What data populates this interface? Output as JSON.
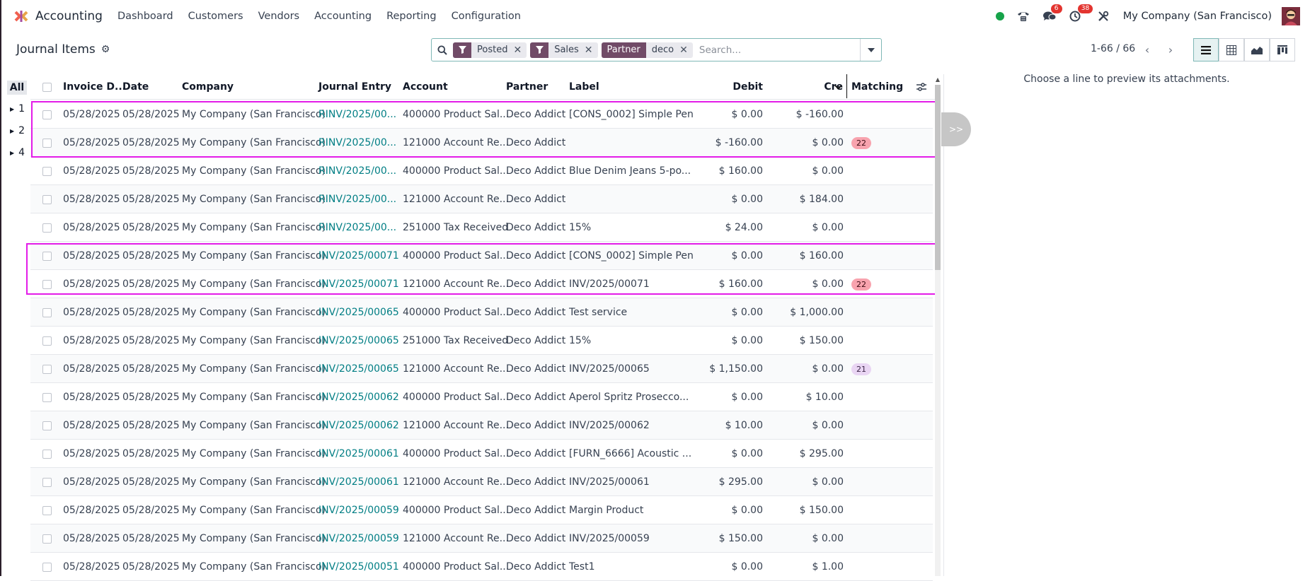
{
  "app": {
    "name": "Accounting",
    "menu": [
      "Dashboard",
      "Customers",
      "Vendors",
      "Accounting",
      "Reporting",
      "Configuration"
    ],
    "company": "My Company (San Francisco)",
    "messages_badge": "6",
    "activities_badge": "38"
  },
  "control_panel": {
    "title": "Journal Items",
    "facets": [
      {
        "label": "Posted"
      },
      {
        "label": "Sales"
      },
      {
        "label": "deco",
        "tag": "Partner"
      }
    ],
    "search_placeholder": "Search...",
    "pager": "1-66 / 66"
  },
  "group_panel": {
    "all_label": "All",
    "items": [
      "1",
      "2",
      "4"
    ]
  },
  "table": {
    "columns": [
      "Invoice D...",
      "Date",
      "Company",
      "Journal Entry",
      "Account",
      "Partner",
      "Label",
      "Debit",
      "Cre",
      "Matching"
    ],
    "rows": [
      {
        "invoice_date": "05/28/2025",
        "date": "05/28/2025",
        "company": "My Company (San Francisco)",
        "entry": "RINV/2025/00...",
        "account": "400000 Product Sal...",
        "partner": "Deco Addict",
        "label": "[CONS_0002] Simple Pen",
        "debit": "$ 0.00",
        "credit": "$ -160.00",
        "matching": ""
      },
      {
        "invoice_date": "05/28/2025",
        "date": "05/28/2025",
        "company": "My Company (San Francisco)",
        "entry": "RINV/2025/00...",
        "account": "121000 Account Re...",
        "partner": "Deco Addict",
        "label": "",
        "debit": "$ -160.00",
        "credit": "$ 0.00",
        "matching": "22"
      },
      {
        "invoice_date": "05/28/2025",
        "date": "05/28/2025",
        "company": "My Company (San Francisco)",
        "entry": "RINV/2025/00...",
        "account": "400000 Product Sal...",
        "partner": "Deco Addict",
        "label": "Blue Denim Jeans 5-po...",
        "debit": "$ 160.00",
        "credit": "$ 0.00",
        "matching": ""
      },
      {
        "invoice_date": "05/28/2025",
        "date": "05/28/2025",
        "company": "My Company (San Francisco)",
        "entry": "RINV/2025/00...",
        "account": "121000 Account Re...",
        "partner": "Deco Addict",
        "label": "",
        "debit": "$ 0.00",
        "credit": "$ 184.00",
        "matching": ""
      },
      {
        "invoice_date": "05/28/2025",
        "date": "05/28/2025",
        "company": "My Company (San Francisco)",
        "entry": "RINV/2025/00...",
        "account": "251000 Tax Received",
        "partner": "Deco Addict",
        "label": "15%",
        "debit": "$ 24.00",
        "credit": "$ 0.00",
        "matching": ""
      },
      {
        "invoice_date": "05/28/2025",
        "date": "05/28/2025",
        "company": "My Company (San Francisco)",
        "entry": "INV/2025/00071",
        "account": "400000 Product Sal...",
        "partner": "Deco Addict",
        "label": "[CONS_0002] Simple Pen",
        "debit": "$ 0.00",
        "credit": "$ 160.00",
        "matching": ""
      },
      {
        "invoice_date": "05/28/2025",
        "date": "05/28/2025",
        "company": "My Company (San Francisco)",
        "entry": "INV/2025/00071",
        "account": "121000 Account Re...",
        "partner": "Deco Addict",
        "label": "INV/2025/00071",
        "debit": "$ 160.00",
        "credit": "$ 0.00",
        "matching": "22"
      },
      {
        "invoice_date": "05/28/2025",
        "date": "05/28/2025",
        "company": "My Company (San Francisco)",
        "entry": "INV/2025/00065",
        "account": "400000 Product Sal...",
        "partner": "Deco Addict",
        "label": "Test service",
        "debit": "$ 0.00",
        "credit": "$ 1,000.00",
        "matching": ""
      },
      {
        "invoice_date": "05/28/2025",
        "date": "05/28/2025",
        "company": "My Company (San Francisco)",
        "entry": "INV/2025/00065",
        "account": "251000 Tax Received",
        "partner": "Deco Addict",
        "label": "15%",
        "debit": "$ 0.00",
        "credit": "$ 150.00",
        "matching": ""
      },
      {
        "invoice_date": "05/28/2025",
        "date": "05/28/2025",
        "company": "My Company (San Francisco)",
        "entry": "INV/2025/00065",
        "account": "121000 Account Re...",
        "partner": "Deco Addict",
        "label": "INV/2025/00065",
        "debit": "$ 1,150.00",
        "credit": "$ 0.00",
        "matching": "21"
      },
      {
        "invoice_date": "05/28/2025",
        "date": "05/28/2025",
        "company": "My Company (San Francisco)",
        "entry": "INV/2025/00062",
        "account": "400000 Product Sal...",
        "partner": "Deco Addict",
        "label": "Aperol Spritz Prosecco...",
        "debit": "$ 0.00",
        "credit": "$ 10.00",
        "matching": ""
      },
      {
        "invoice_date": "05/28/2025",
        "date": "05/28/2025",
        "company": "My Company (San Francisco)",
        "entry": "INV/2025/00062",
        "account": "121000 Account Re...",
        "partner": "Deco Addict",
        "label": "INV/2025/00062",
        "debit": "$ 10.00",
        "credit": "$ 0.00",
        "matching": ""
      },
      {
        "invoice_date": "05/28/2025",
        "date": "05/28/2025",
        "company": "My Company (San Francisco)",
        "entry": "INV/2025/00061",
        "account": "400000 Product Sal...",
        "partner": "Deco Addict",
        "label": "[FURN_6666] Acoustic ...",
        "debit": "$ 0.00",
        "credit": "$ 295.00",
        "matching": ""
      },
      {
        "invoice_date": "05/28/2025",
        "date": "05/28/2025",
        "company": "My Company (San Francisco)",
        "entry": "INV/2025/00061",
        "account": "121000 Account Re...",
        "partner": "Deco Addict",
        "label": "INV/2025/00061",
        "debit": "$ 295.00",
        "credit": "$ 0.00",
        "matching": ""
      },
      {
        "invoice_date": "05/28/2025",
        "date": "05/28/2025",
        "company": "My Company (San Francisco)",
        "entry": "INV/2025/00059",
        "account": "400000 Product Sal...",
        "partner": "Deco Addict",
        "label": "Margin Product",
        "debit": "$ 0.00",
        "credit": "$ 150.00",
        "matching": ""
      },
      {
        "invoice_date": "05/28/2025",
        "date": "05/28/2025",
        "company": "My Company (San Francisco)",
        "entry": "INV/2025/00059",
        "account": "121000 Account Re...",
        "partner": "Deco Addict",
        "label": "INV/2025/00059",
        "debit": "$ 150.00",
        "credit": "$ 0.00",
        "matching": ""
      },
      {
        "invoice_date": "05/28/2025",
        "date": "05/28/2025",
        "company": "My Company (San Francisco)",
        "entry": "INV/2025/00051",
        "account": "400000 Product Sal...",
        "partner": "Deco Addict",
        "label": "Test1",
        "debit": "$ 0.00",
        "credit": "$ 1.00",
        "matching": ""
      }
    ]
  },
  "preview": {
    "message": "Choose a line to preview its attachments.",
    "toggle_label": ">>"
  },
  "colors": {
    "brand": "#714b67",
    "link": "#017e84",
    "highlight": "#e31ce8",
    "badge": "#e3342f"
  }
}
